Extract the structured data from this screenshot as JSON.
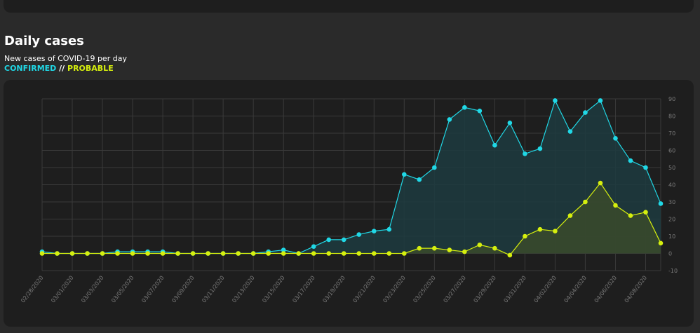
{
  "header": {
    "title": "Daily cases",
    "subtitle": "New cases of COVID-19 per day",
    "legend_confirmed": "CONFIRMED",
    "legend_separator": " // ",
    "legend_probable": "PROBABLE"
  },
  "colors": {
    "confirmed": "#20d8e6",
    "probable": "#d6ef0e",
    "confirmed_fill": "#1d3b3f",
    "probable_fill": "#394a2b",
    "grid": "#3a3a3a",
    "background": "#2a2a2a",
    "panel": "#1e1e1e"
  },
  "chart_data": {
    "type": "line",
    "grid": true,
    "ylim": [
      -10,
      90
    ],
    "y_ticks": [
      90,
      80,
      70,
      60,
      50,
      40,
      30,
      20,
      10,
      0,
      -10
    ],
    "x_tick_labels": [
      "02/28/2020",
      "03/01/2020",
      "03/03/2020",
      "03/05/2020",
      "03/07/2020",
      "03/09/2020",
      "03/11/2020",
      "03/13/2020",
      "03/15/2020",
      "03/17/2020",
      "03/19/2020",
      "03/21/2020",
      "03/23/2020",
      "03/25/2020",
      "03/27/2020",
      "03/29/2020",
      "03/31/2020",
      "04/02/2020",
      "04/04/2020",
      "04/06/2020",
      "04/08/2020"
    ],
    "x": [
      "02/28/2020",
      "02/29/2020",
      "03/01/2020",
      "03/02/2020",
      "03/03/2020",
      "03/04/2020",
      "03/05/2020",
      "03/06/2020",
      "03/07/2020",
      "03/08/2020",
      "03/09/2020",
      "03/10/2020",
      "03/11/2020",
      "03/12/2020",
      "03/13/2020",
      "03/14/2020",
      "03/15/2020",
      "03/16/2020",
      "03/17/2020",
      "03/18/2020",
      "03/19/2020",
      "03/20/2020",
      "03/21/2020",
      "03/22/2020",
      "03/23/2020",
      "03/24/2020",
      "03/25/2020",
      "03/26/2020",
      "03/27/2020",
      "03/28/2020",
      "03/29/2020",
      "03/30/2020",
      "03/31/2020",
      "04/01/2020",
      "04/02/2020",
      "04/03/2020",
      "04/04/2020",
      "04/05/2020",
      "04/06/2020",
      "04/07/2020",
      "04/08/2020",
      "04/09/2020"
    ],
    "series": [
      {
        "name": "CONFIRMED",
        "values": [
          1,
          0,
          0,
          0,
          0,
          1,
          1,
          1,
          1,
          0,
          0,
          0,
          0,
          0,
          0,
          1,
          2,
          0,
          4,
          8,
          8,
          11,
          13,
          14,
          46,
          43,
          50,
          78,
          85,
          83,
          63,
          76,
          58,
          61,
          89,
          71,
          82,
          89,
          67,
          54,
          50,
          29
        ]
      },
      {
        "name": "PROBABLE",
        "values": [
          0,
          0,
          0,
          0,
          0,
          0,
          0,
          0,
          0,
          0,
          0,
          0,
          0,
          0,
          0,
          0,
          0,
          0,
          0,
          0,
          0,
          0,
          0,
          0,
          0,
          3,
          3,
          2,
          1,
          5,
          3,
          -1,
          10,
          14,
          13,
          22,
          30,
          41,
          28,
          22,
          24,
          6
        ]
      }
    ]
  }
}
